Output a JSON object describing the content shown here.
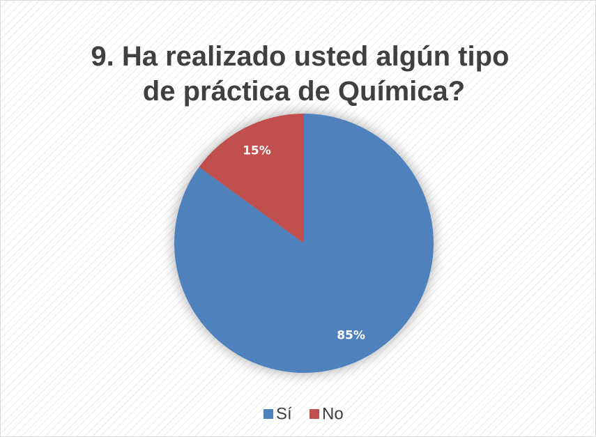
{
  "chart_data": {
    "type": "pie",
    "title": [
      "9. Ha realizado usted algún tipo",
      "de práctica de Química?"
    ],
    "categories": [
      "Sí",
      "No"
    ],
    "values": [
      85,
      15
    ],
    "value_labels": [
      "85%",
      "15%"
    ],
    "colors": [
      "#4f81bd",
      "#c0504d"
    ],
    "legend": "bottom"
  }
}
